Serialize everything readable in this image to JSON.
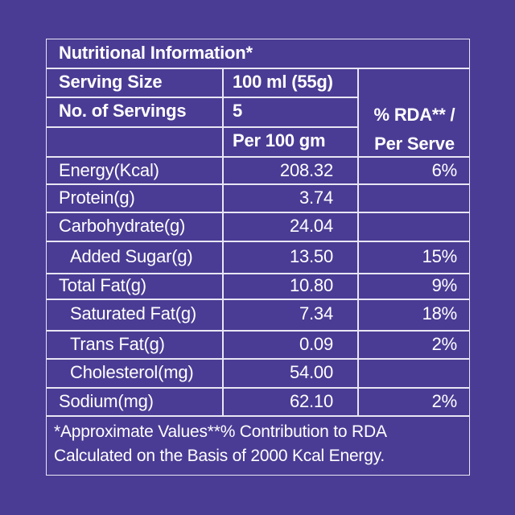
{
  "title": "Nutritional Information*",
  "serving_size": {
    "label": "Serving Size",
    "value": "100 ml (55g)"
  },
  "no_of_servings": {
    "label": "No. of Servings",
    "value": "5"
  },
  "per_header": "Per 100 gm",
  "rda_header": {
    "line1": "% RDA** /",
    "line2": "Per Serve"
  },
  "rows": [
    {
      "name": "Energy(Kcal)",
      "per100": "208.32",
      "rda": "6%"
    },
    {
      "name": "Protein(g)",
      "per100": "3.74",
      "rda": ""
    },
    {
      "name": "Carbohydrate(g)",
      "per100": "24.04",
      "rda": ""
    },
    {
      "name": "Added Sugar(g)",
      "per100": "13.50",
      "rda": "15%"
    },
    {
      "name": "Total Fat(g)",
      "per100": "10.80",
      "rda": "9%"
    },
    {
      "name": "Saturated Fat(g)",
      "per100": "7.34",
      "rda": "18%"
    },
    {
      "name": "Trans Fat(g)",
      "per100": "0.09",
      "rda": "2%"
    },
    {
      "name": "Cholesterol(mg)",
      "per100": "54.00",
      "rda": ""
    },
    {
      "name": "Sodium(mg)",
      "per100": "62.10",
      "rda": "2%"
    }
  ],
  "footnote": {
    "line1": "*Approximate Values**% Contribution to RDA",
    "line2": "Calculated on the Basis of 2000 Kcal Energy."
  },
  "colors": {
    "background": "#4a3c94",
    "text": "#ffffff",
    "rule": "#e8e6f4"
  }
}
